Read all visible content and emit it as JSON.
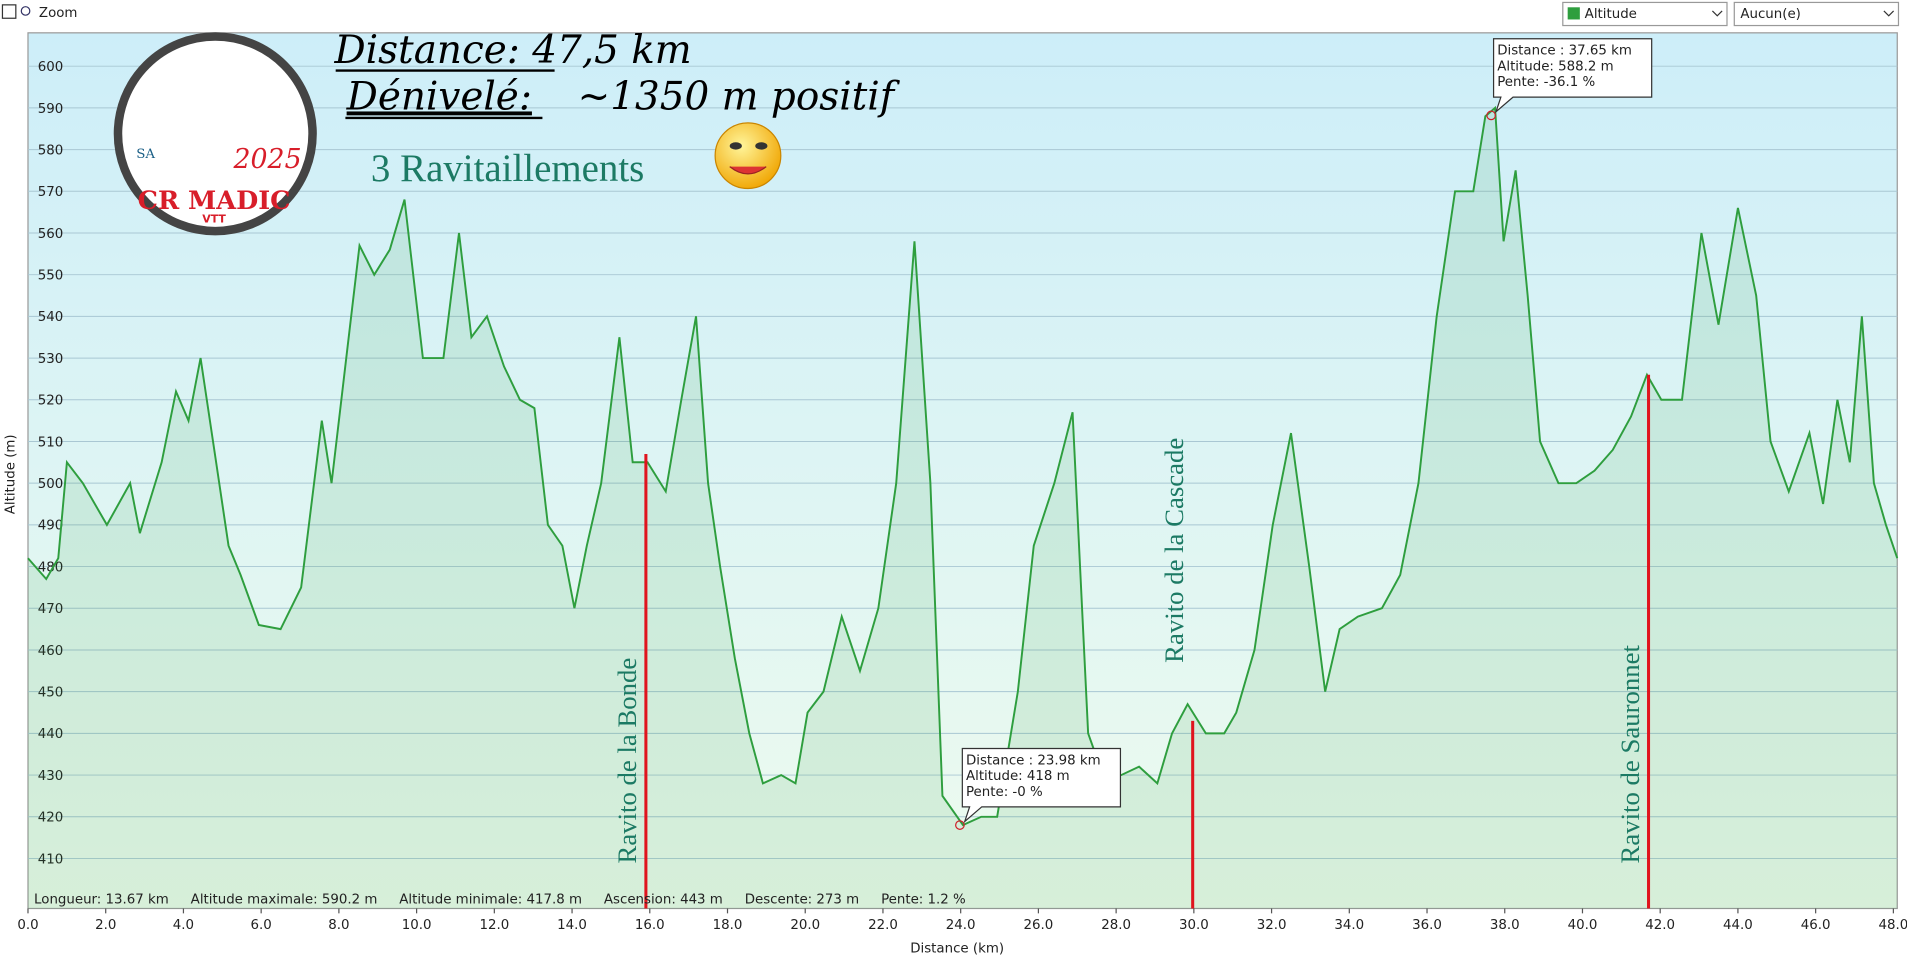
{
  "toolbar": {
    "zoom": "Zoom",
    "select1": "Altitude",
    "select2": "Aucun(e)"
  },
  "header": {
    "distance": "Distance:  47,5 km",
    "denivele": "Dénivelé:",
    "denivele_value": "~1350 m positif",
    "ravitaillements": "3 Ravitaillements",
    "logo_club": "CR MADIC",
    "logo_vtt": "VTT",
    "logo_year": "2025"
  },
  "status": [
    "Longueur: 13.67 km",
    "Altitude maximale: 590.2 m",
    "Altitude minimale: 417.8 m",
    "Ascension: 443 m",
    "Descente: 273 m",
    "Pente: 1.2 %"
  ],
  "chart_data": {
    "type": "area",
    "x_label": "Distance   (km)",
    "y_label": "Altitude (m)",
    "xlim": [
      0,
      48.1
    ],
    "ylim": [
      398,
      608
    ],
    "grid": true,
    "xticks": [
      {
        "value": 0,
        "label": "0.0"
      },
      {
        "value": 2,
        "label": "2.0"
      },
      {
        "value": 4,
        "label": "4.0"
      },
      {
        "value": 6,
        "label": "6.0"
      },
      {
        "value": 8,
        "label": "8.0"
      },
      {
        "value": 10,
        "label": "10.0"
      },
      {
        "value": 12,
        "label": "12.0"
      },
      {
        "value": 14,
        "label": "14.0"
      },
      {
        "value": 16,
        "label": "16.0"
      },
      {
        "value": 18,
        "label": "18.0"
      },
      {
        "value": 20,
        "label": "20.0"
      },
      {
        "value": 22,
        "label": "22.0"
      },
      {
        "value": 24,
        "label": "24.0"
      },
      {
        "value": 26,
        "label": "26.0"
      },
      {
        "value": 28,
        "label": "28.0"
      },
      {
        "value": 30,
        "label": "30.0"
      },
      {
        "value": 32,
        "label": "32.0"
      },
      {
        "value": 34,
        "label": "34.0"
      },
      {
        "value": 36,
        "label": "36.0"
      },
      {
        "value": 38,
        "label": "38.0"
      },
      {
        "value": 40,
        "label": "40.0"
      },
      {
        "value": 42,
        "label": "42.0"
      },
      {
        "value": 44,
        "label": "44.0"
      },
      {
        "value": 46,
        "label": "46.0"
      },
      {
        "value": 48,
        "label": "48.0"
      }
    ],
    "yticks": [
      410,
      420,
      430,
      440,
      450,
      460,
      470,
      480,
      490,
      500,
      510,
      520,
      530,
      540,
      550,
      560,
      570,
      580,
      590,
      600
    ],
    "x": [
      0,
      0.47,
      0.78,
      1.0,
      1.41,
      2.03,
      2.63,
      2.88,
      3.44,
      3.81,
      4.13,
      4.44,
      4.84,
      5.16,
      5.47,
      5.94,
      6.5,
      7.03,
      7.56,
      7.81,
      8.19,
      8.53,
      8.91,
      9.31,
      9.69,
      10.16,
      10.69,
      11.09,
      11.41,
      11.81,
      12.25,
      12.66,
      13.03,
      13.38,
      13.75,
      14.06,
      14.38,
      14.75,
      15.22,
      15.56,
      15.94,
      16.41,
      16.81,
      17.19,
      17.5,
      17.81,
      18.19,
      18.56,
      18.91,
      19.38,
      19.75,
      20.06,
      20.47,
      20.94,
      21.41,
      21.88,
      22.34,
      22.81,
      23.22,
      23.53,
      24.06,
      24.53,
      24.94,
      25.47,
      25.88,
      26.41,
      26.88,
      27.28,
      27.66,
      28.13,
      28.59,
      29.06,
      29.44,
      29.84,
      30.31,
      30.78,
      31.09,
      31.56,
      32.03,
      32.5,
      32.97,
      33.38,
      33.75,
      34.22,
      34.84,
      35.31,
      35.78,
      36.25,
      36.72,
      37.19,
      37.5,
      37.75,
      37.97,
      38.28,
      38.59,
      38.91,
      39.38,
      39.84,
      40.31,
      40.78,
      41.25,
      41.66,
      42.03,
      42.56,
      43.06,
      43.5,
      44.0,
      44.47,
      44.84,
      45.31,
      45.84,
      46.19,
      46.56,
      46.88,
      47.19,
      47.5,
      47.81,
      48.1
    ],
    "series": [
      {
        "name": "Altitude",
        "color": "#2e9e3e",
        "values": [
          482,
          477,
          482,
          505,
          500,
          490,
          500,
          488,
          505,
          522,
          515,
          530,
          505,
          485,
          478,
          466,
          465,
          475,
          515,
          500,
          530,
          557,
          550,
          556,
          568,
          530,
          530,
          560,
          535,
          540,
          528,
          520,
          518,
          490,
          485,
          470,
          485,
          500,
          535,
          505,
          505,
          498,
          520,
          540,
          500,
          480,
          458,
          440,
          428,
          430,
          428,
          445,
          450,
          468,
          455,
          470,
          500,
          558,
          500,
          425,
          418,
          420,
          420,
          450,
          485,
          500,
          517,
          440,
          430,
          430,
          432,
          428,
          440,
          447,
          440,
          440,
          445,
          460,
          490,
          512,
          480,
          450,
          465,
          468,
          470,
          478,
          500,
          540,
          570,
          570,
          588,
          590,
          558,
          575,
          545,
          510,
          500,
          500,
          503,
          508,
          516,
          526,
          520,
          520,
          560,
          538,
          566,
          545,
          510,
          498,
          512,
          495,
          520,
          505,
          540,
          500,
          490,
          482
        ]
      }
    ],
    "ravitos": [
      {
        "label": "Ravito  de la Bonde",
        "x": 15.9,
        "altitude": 507
      },
      {
        "label": "Ravito  de la Cascade",
        "x": 29.97,
        "altitude": 443
      },
      {
        "label": "Ravito  de Sauronnet",
        "x": 41.7,
        "altitude": 526
      }
    ],
    "tooltips": [
      {
        "x": 37.65,
        "altitude": 588.2,
        "lines": [
          "Distance  : 37.65 km",
          "Altitude: 588.2 m",
          "Pente: -36.1 %"
        ]
      },
      {
        "x": 23.98,
        "altitude": 418,
        "lines": [
          "Distance  : 23.98 km",
          "Altitude: 418 m",
          "Pente: -0 %"
        ]
      }
    ]
  }
}
